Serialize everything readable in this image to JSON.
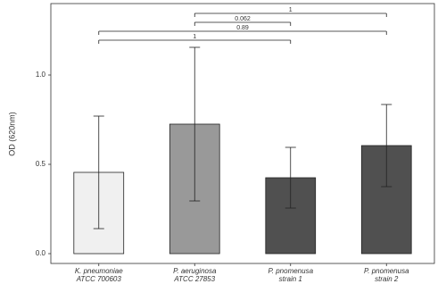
{
  "chart_data": {
    "type": "bar",
    "y_label": "OD (620nm)",
    "categories": [
      [
        "K. pneumoniae",
        "ATCC 700603"
      ],
      [
        "P. aeruginosa",
        "ATCC 27853"
      ],
      [
        "P. pnomenusa",
        "strain 1"
      ],
      [
        "P. pnomenusa",
        "strain 2"
      ]
    ],
    "values": [
      0.455,
      0.725,
      0.425,
      0.605
    ],
    "errors": [
      0.315,
      0.43,
      0.17,
      0.23
    ],
    "colors": [
      "#f0f0f0",
      "#999999",
      "#505050",
      "#505050"
    ],
    "ylim": [
      -0.055,
      1.4
    ],
    "yticks": [
      {
        "value": 0,
        "label": "0.0"
      },
      {
        "value": 0.5,
        "label": "0.5"
      },
      {
        "value": 1,
        "label": "1.0"
      }
    ],
    "comparisons": [
      {
        "from": 1,
        "to": 3,
        "label": "1"
      },
      {
        "from": 1,
        "to": 2,
        "label": "0.062"
      },
      {
        "from": 0,
        "to": 3,
        "label": "0.89"
      },
      {
        "from": 0,
        "to": 2,
        "label": "1"
      }
    ]
  }
}
